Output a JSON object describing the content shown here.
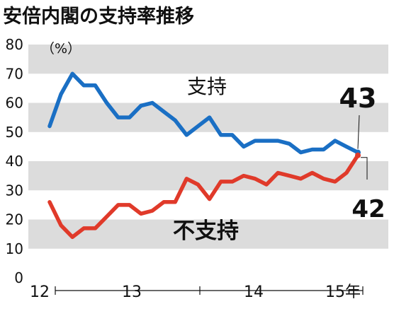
{
  "chart_data": {
    "type": "line",
    "title": "安倍内閣の支持率推移",
    "unit": "（%）",
    "ylim": [
      0,
      80
    ],
    "y_ticks": [
      "0",
      "10",
      "20",
      "30",
      "40",
      "50",
      "60",
      "70",
      "80"
    ],
    "x_labels": [
      "12",
      "13",
      "14",
      "15年"
    ],
    "grid": "alternating bands",
    "series": [
      {
        "name": "支持",
        "color": "#1a6fc4",
        "values": [
          52,
          63,
          70,
          66,
          66,
          60,
          55,
          55,
          59,
          60,
          57,
          54,
          49,
          52,
          55,
          49,
          49,
          45,
          47,
          47,
          47,
          46,
          43,
          44,
          44,
          47,
          45,
          43
        ]
      },
      {
        "name": "不支持",
        "color": "#e03a2a",
        "values": [
          26,
          18,
          14,
          17,
          17,
          21,
          25,
          25,
          22,
          23,
          26,
          26,
          34,
          32,
          27,
          33,
          33,
          35,
          34,
          32,
          36,
          35,
          34,
          36,
          34,
          33,
          36,
          42
        ]
      }
    ],
    "end_labels": {
      "support": "43",
      "oppose": "42"
    }
  }
}
